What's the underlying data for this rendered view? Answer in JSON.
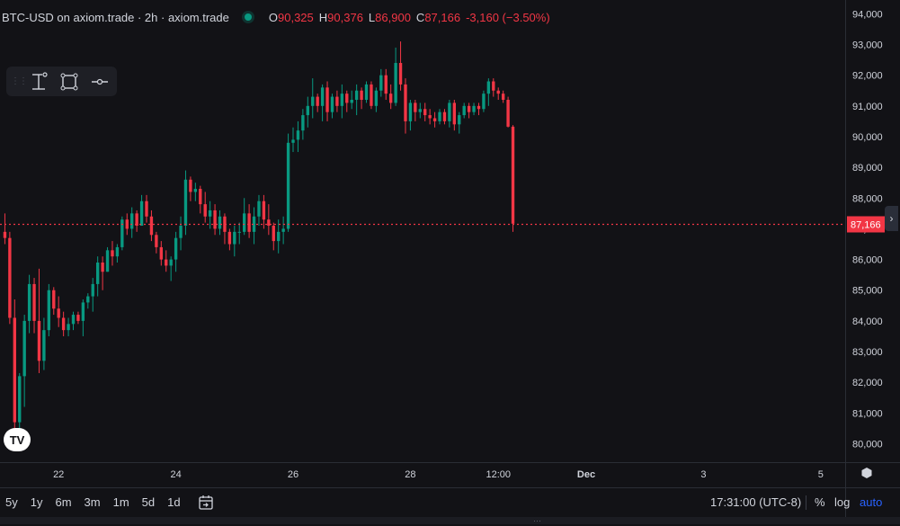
{
  "legend": {
    "symbol": "BTC-USD on axiom.trade · 2h · axiom.trade",
    "open_label": "O",
    "open": "90,325",
    "high_label": "H",
    "high": "90,376",
    "low_label": "L",
    "low": "86,900",
    "close_label": "C",
    "close": "87,166",
    "change": "-3,160 (−3.50%)"
  },
  "logo": {
    "text": "TV"
  },
  "toolbar": {
    "items": [
      {
        "name": "grip-icon"
      },
      {
        "name": "measure-icon"
      },
      {
        "name": "rectangle-icon"
      },
      {
        "name": "horizontal-line-icon"
      }
    ]
  },
  "bottom": {
    "ranges": [
      "5y",
      "1y",
      "6m",
      "3m",
      "1m",
      "5d",
      "1d"
    ],
    "timezone": "17:31:00 (UTC-8)",
    "percent": "%",
    "log": "log",
    "auto": "auto"
  },
  "colors": {
    "background": "#121216",
    "up": "#089981",
    "down": "#f23645",
    "text": "#d1d4dc",
    "accent": "#2962ff"
  },
  "chart_data": {
    "type": "candlestick",
    "symbol": "BTC-USD",
    "interval": "2h",
    "x_ticks": [
      {
        "label": "22",
        "index": 11
      },
      {
        "label": "24",
        "index": 35
      },
      {
        "label": "26",
        "index": 59
      },
      {
        "label": "28",
        "index": 83
      },
      {
        "label": "12:00",
        "index": 101
      },
      {
        "label": "Dec",
        "index": 119
      },
      {
        "label": "3",
        "index": 143
      },
      {
        "label": "5",
        "index": 167
      }
    ],
    "y_ticks": [
      80000,
      81000,
      82000,
      83000,
      84000,
      85000,
      86000,
      87000,
      88000,
      89000,
      90000,
      91000,
      92000,
      93000,
      94000
    ],
    "ylim": [
      79400,
      94450
    ],
    "x_range": [
      -1,
      172
    ],
    "last_price": 87166,
    "last_price_label": "87,166",
    "candles": [
      [
        86900,
        87500,
        86500,
        86700
      ],
      [
        86700,
        86900,
        83900,
        84100
      ],
      [
        84100,
        84700,
        80400,
        80700
      ],
      [
        80700,
        82300,
        80500,
        82200
      ],
      [
        82200,
        84200,
        81200,
        84000
      ],
      [
        84000,
        85500,
        83600,
        85200
      ],
      [
        85200,
        85400,
        83600,
        84000
      ],
      [
        84000,
        85700,
        82300,
        82700
      ],
      [
        82700,
        84100,
        82400,
        83700
      ],
      [
        83700,
        85200,
        83500,
        85000
      ],
      [
        85000,
        85100,
        84200,
        84400
      ],
      [
        84400,
        84800,
        83800,
        84100
      ],
      [
        84100,
        84300,
        83500,
        83700
      ],
      [
        83700,
        84100,
        83500,
        83900
      ],
      [
        83900,
        84300,
        83700,
        84200
      ],
      [
        84200,
        84300,
        83900,
        84000
      ],
      [
        84000,
        84700,
        83500,
        84600
      ],
      [
        84600,
        84900,
        84400,
        84800
      ],
      [
        84800,
        85400,
        84300,
        85200
      ],
      [
        85200,
        86100,
        84800,
        85900
      ],
      [
        85900,
        86100,
        85000,
        85600
      ],
      [
        85600,
        86400,
        85600,
        86300
      ],
      [
        86300,
        86600,
        85800,
        86100
      ],
      [
        86100,
        86500,
        85900,
        86400
      ],
      [
        86400,
        87400,
        86300,
        87300
      ],
      [
        87300,
        87500,
        86800,
        87000
      ],
      [
        87000,
        87700,
        86700,
        87500
      ],
      [
        87500,
        87600,
        86900,
        87100
      ],
      [
        87100,
        88100,
        87100,
        87900
      ],
      [
        87900,
        88100,
        87200,
        87400
      ],
      [
        87400,
        87600,
        86600,
        86800
      ],
      [
        86800,
        86900,
        86200,
        86400
      ],
      [
        86400,
        86600,
        85800,
        86000
      ],
      [
        86000,
        86300,
        85600,
        85800
      ],
      [
        85800,
        86100,
        85300,
        86000
      ],
      [
        86000,
        86900,
        85600,
        86700
      ],
      [
        86700,
        87400,
        86300,
        87100
      ],
      [
        87100,
        88900,
        86800,
        88600
      ],
      [
        88600,
        88700,
        87900,
        88200
      ],
      [
        88200,
        88500,
        87900,
        88300
      ],
      [
        88300,
        88400,
        87500,
        87800
      ],
      [
        87800,
        88200,
        87200,
        87400
      ],
      [
        87400,
        87900,
        87000,
        87600
      ],
      [
        87600,
        87800,
        86800,
        87000
      ],
      [
        87000,
        87600,
        86800,
        87400
      ],
      [
        87400,
        87500,
        86500,
        86900
      ],
      [
        86900,
        87000,
        86300,
        86500
      ],
      [
        86500,
        87100,
        86100,
        86900
      ],
      [
        86900,
        87200,
        86500,
        86900
      ],
      [
        86900,
        88000,
        86800,
        87500
      ],
      [
        87500,
        87800,
        86700,
        86900
      ],
      [
        86900,
        87700,
        86500,
        87400
      ],
      [
        87400,
        88100,
        87100,
        87900
      ],
      [
        87900,
        88100,
        87000,
        87300
      ],
      [
        87300,
        87800,
        86800,
        87100
      ],
      [
        87100,
        87200,
        86300,
        86600
      ],
      [
        86600,
        87300,
        86200,
        86900
      ],
      [
        86900,
        87400,
        86500,
        87000
      ],
      [
        87000,
        90100,
        86900,
        89800
      ],
      [
        89800,
        90300,
        89500,
        89900
      ],
      [
        89900,
        90500,
        89500,
        90200
      ],
      [
        90200,
        90900,
        89900,
        90700
      ],
      [
        90700,
        91300,
        90300,
        91000
      ],
      [
        91000,
        91900,
        90600,
        91300
      ],
      [
        91300,
        91400,
        90800,
        91000
      ],
      [
        91000,
        91700,
        90500,
        91600
      ],
      [
        91600,
        91800,
        90500,
        90800
      ],
      [
        90800,
        91400,
        90600,
        91300
      ],
      [
        91300,
        91500,
        90800,
        91000
      ],
      [
        91000,
        91700,
        90600,
        91400
      ],
      [
        91400,
        91500,
        90800,
        91100
      ],
      [
        91100,
        91500,
        90900,
        91200
      ],
      [
        91200,
        91700,
        90700,
        91500
      ],
      [
        91500,
        91600,
        90900,
        91200
      ],
      [
        91200,
        91800,
        91100,
        91700
      ],
      [
        91700,
        91800,
        90900,
        91000
      ],
      [
        91000,
        91600,
        90800,
        91500
      ],
      [
        91500,
        92200,
        91300,
        92000
      ],
      [
        92000,
        92200,
        91200,
        91400
      ],
      [
        91400,
        91700,
        90900,
        91100
      ],
      [
        91100,
        92900,
        91000,
        92400
      ],
      [
        92400,
        93100,
        91500,
        91700
      ],
      [
        91700,
        91900,
        90100,
        90500
      ],
      [
        90500,
        91200,
        90200,
        91100
      ],
      [
        91100,
        91200,
        90500,
        90800
      ],
      [
        90800,
        91100,
        90600,
        90900
      ],
      [
        90900,
        91100,
        90500,
        90700
      ],
      [
        90700,
        90900,
        90400,
        90600
      ],
      [
        90600,
        90800,
        90300,
        90500
      ],
      [
        90500,
        90900,
        90400,
        90800
      ],
      [
        90800,
        90900,
        90400,
        90500
      ],
      [
        90500,
        91200,
        90300,
        91100
      ],
      [
        91100,
        91200,
        90200,
        90400
      ],
      [
        90400,
        90800,
        90100,
        90700
      ],
      [
        90700,
        91100,
        90600,
        91000
      ],
      [
        91000,
        91100,
        90600,
        90800
      ],
      [
        90800,
        91100,
        90700,
        91000
      ],
      [
        91000,
        91100,
        90700,
        90900
      ],
      [
        90900,
        91500,
        90800,
        91400
      ],
      [
        91400,
        91900,
        91000,
        91800
      ],
      [
        91800,
        91900,
        91300,
        91500
      ],
      [
        91500,
        91600,
        91200,
        91400
      ],
      [
        91400,
        91500,
        91100,
        91200
      ],
      [
        91200,
        91300,
        90300,
        90325
      ],
      [
        90325,
        90376,
        86900,
        87166
      ]
    ]
  }
}
